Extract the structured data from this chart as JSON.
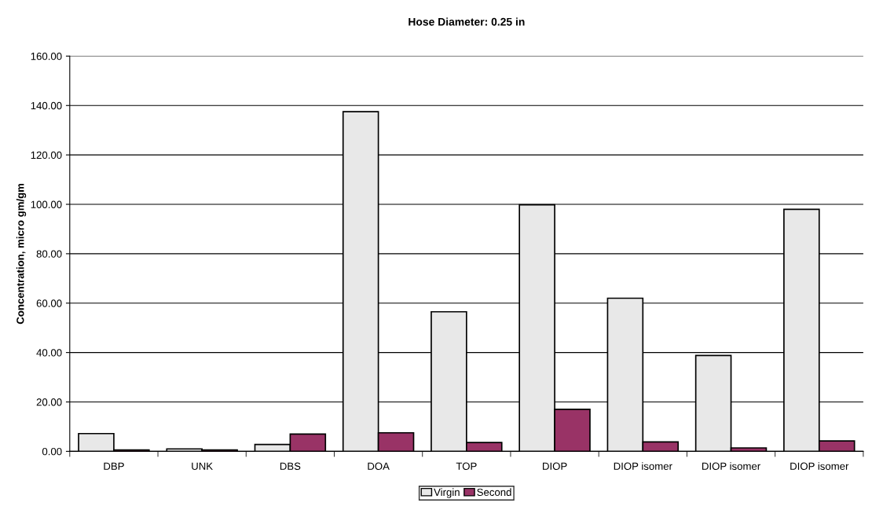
{
  "chart_data": {
    "type": "bar",
    "title": "Hose Diameter: 0.25 in",
    "ylabel": "Concentration, micro gm/gm",
    "categories": [
      "DBP",
      "UNK",
      "DBS",
      "DOA",
      "TOP",
      "DIOP",
      "DIOP isomer",
      "DIOP isomer",
      "DIOP isomer"
    ],
    "series": [
      {
        "name": "Virgin",
        "color": "#e8e8e8",
        "values": [
          7.2,
          1.0,
          2.8,
          137.5,
          56.5,
          99.8,
          62.0,
          38.8,
          98.0
        ]
      },
      {
        "name": "Second",
        "color": "#993366",
        "values": [
          0.6,
          0.6,
          7.0,
          7.5,
          3.6,
          17.0,
          3.8,
          1.4,
          4.2
        ]
      }
    ],
    "ylim": [
      0,
      160
    ],
    "yticks": [
      {
        "value": 0,
        "label": "0.00"
      },
      {
        "value": 20,
        "label": "20.00"
      },
      {
        "value": 40,
        "label": "40.00"
      },
      {
        "value": 60,
        "label": "60.00"
      },
      {
        "value": 80,
        "label": "80.00"
      },
      {
        "value": 100,
        "label": "100.00"
      },
      {
        "value": 120,
        "label": "120.00"
      },
      {
        "value": 140,
        "label": "140.00"
      },
      {
        "value": 160,
        "label": "160.00"
      }
    ],
    "grid": "y",
    "legend": "bottom"
  }
}
